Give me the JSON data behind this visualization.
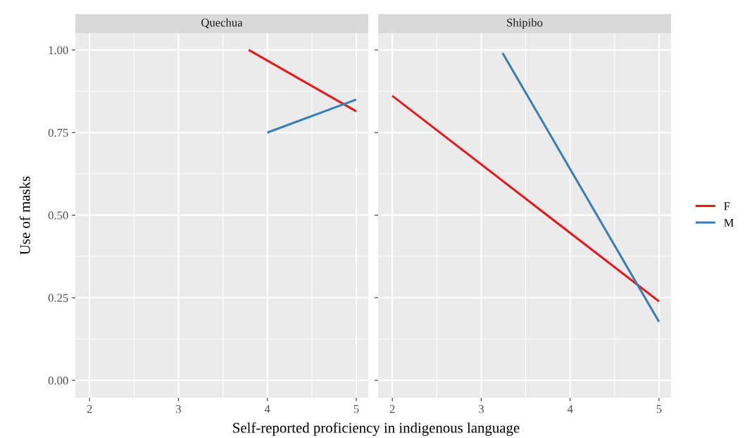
{
  "chart_data": [
    {
      "type": "line",
      "title": "Quechua",
      "xlabel": "Self-reported proficiency in indigenous language",
      "ylabel": "Use of masks",
      "xlim": [
        1.84,
        5.135
      ],
      "xticks": [
        2,
        3,
        4,
        5
      ],
      "ylim": [
        -0.053,
        1.051
      ],
      "yticks": [
        {
          "value": 0,
          "label": "0.00"
        },
        {
          "value": 0.25,
          "label": "0.25"
        },
        {
          "value": 0.5,
          "label": "0.50"
        },
        {
          "value": 0.75,
          "label": "0.75"
        },
        {
          "value": 1,
          "label": "1.00"
        }
      ],
      "grid": true,
      "legend": "right",
      "series": [
        {
          "name": "F",
          "color": "#e41a1c",
          "x": [
            3.79,
            5
          ],
          "values": [
            1.0,
            0.814
          ]
        },
        {
          "name": "M",
          "color": "#377eb8",
          "x": [
            4,
            5
          ],
          "values": [
            0.75,
            0.85
          ]
        }
      ]
    },
    {
      "type": "line",
      "title": "Shipibo",
      "xlim": [
        1.84,
        5.135
      ],
      "xticks": [
        2,
        3,
        4,
        5
      ],
      "ylim": [
        -0.053,
        1.051
      ],
      "yticks": [
        0,
        0.25,
        0.5,
        0.75,
        1
      ],
      "grid": true,
      "tick_labels": "x",
      "series": [
        {
          "color": "#e41a1c",
          "x": [
            2,
            5
          ],
          "values": [
            0.861,
            0.239
          ]
        },
        {
          "color": "#377eb8",
          "x": [
            3.24,
            5
          ],
          "values": [
            0.991,
            0.177
          ]
        }
      ]
    }
  ]
}
